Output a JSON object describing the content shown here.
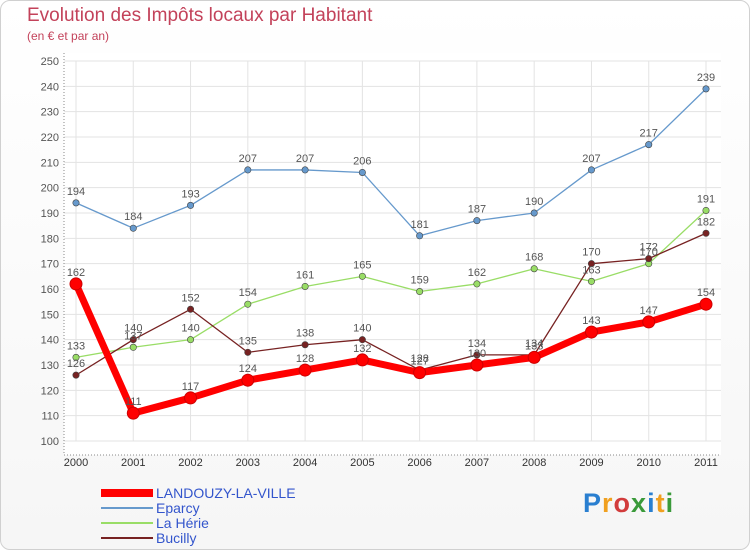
{
  "header": {
    "title": "Evolution des Impôts locaux par Habitant",
    "subtitle": "(en € et par an)"
  },
  "logo": {
    "text": "Proxiti",
    "colors": [
      "#2a7fd0",
      "#f0a020",
      "#d23c3c",
      "#3a9a3a",
      "#2a7fd0",
      "#f0a020",
      "#3a9a3a"
    ]
  },
  "chart_data": {
    "type": "line",
    "title": "Evolution des Impôts locaux par Habitant",
    "subtitle": "(en € et par an)",
    "xlabel": "",
    "ylabel": "",
    "ylim": [
      100,
      250
    ],
    "yticks": [
      100,
      110,
      120,
      130,
      140,
      150,
      160,
      170,
      180,
      190,
      200,
      210,
      220,
      230,
      240,
      250
    ],
    "x": [
      "2000",
      "2001",
      "2002",
      "2003",
      "2004",
      "2005",
      "2006",
      "2007",
      "2008",
      "2009",
      "2010",
      "2011"
    ],
    "grid": true,
    "legend_position": "bottom-left",
    "series": [
      {
        "name": "LANDOUZY-LA-VILLE",
        "color": "#ff0000",
        "values": [
          162,
          111,
          117,
          124,
          128,
          132,
          127,
          130,
          133,
          143,
          147,
          154
        ]
      },
      {
        "name": "Eparcy",
        "color": "#6699cc",
        "values": [
          194,
          184,
          193,
          207,
          207,
          206,
          181,
          187,
          190,
          207,
          217,
          239
        ]
      },
      {
        "name": "La Hérie",
        "color": "#99dd66",
        "values": [
          133,
          137,
          140,
          154,
          161,
          165,
          159,
          162,
          168,
          163,
          170,
          191
        ]
      },
      {
        "name": "Bucilly",
        "color": "#772222",
        "values": [
          126,
          140,
          152,
          135,
          138,
          140,
          128,
          134,
          134,
          170,
          172,
          182
        ]
      }
    ]
  }
}
